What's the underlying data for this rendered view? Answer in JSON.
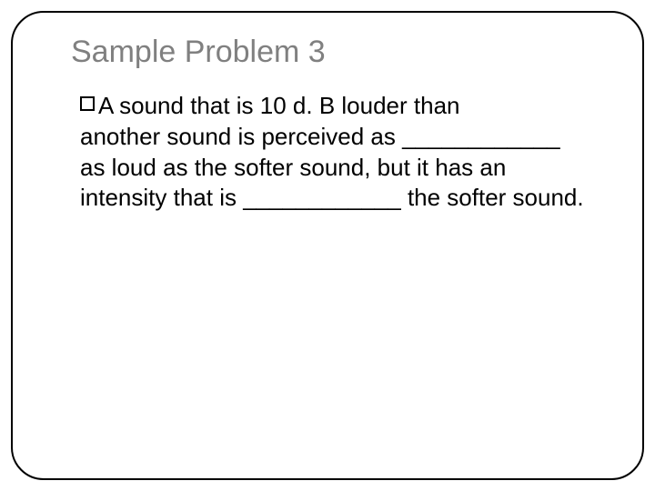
{
  "slide": {
    "title": "Sample Problem 3",
    "body_line1": "A sound that is 10 d. B louder than",
    "body_rest": "another sound is perceived as ____________ as loud as the softer sound, but it has an intensity that is ____________ the softer sound.",
    "title_color": "#808080",
    "body_color": "#000000",
    "title_fontsize": 34,
    "body_fontsize": 26,
    "border_color": "#000000",
    "border_radius": 36,
    "background_color": "#ffffff"
  }
}
